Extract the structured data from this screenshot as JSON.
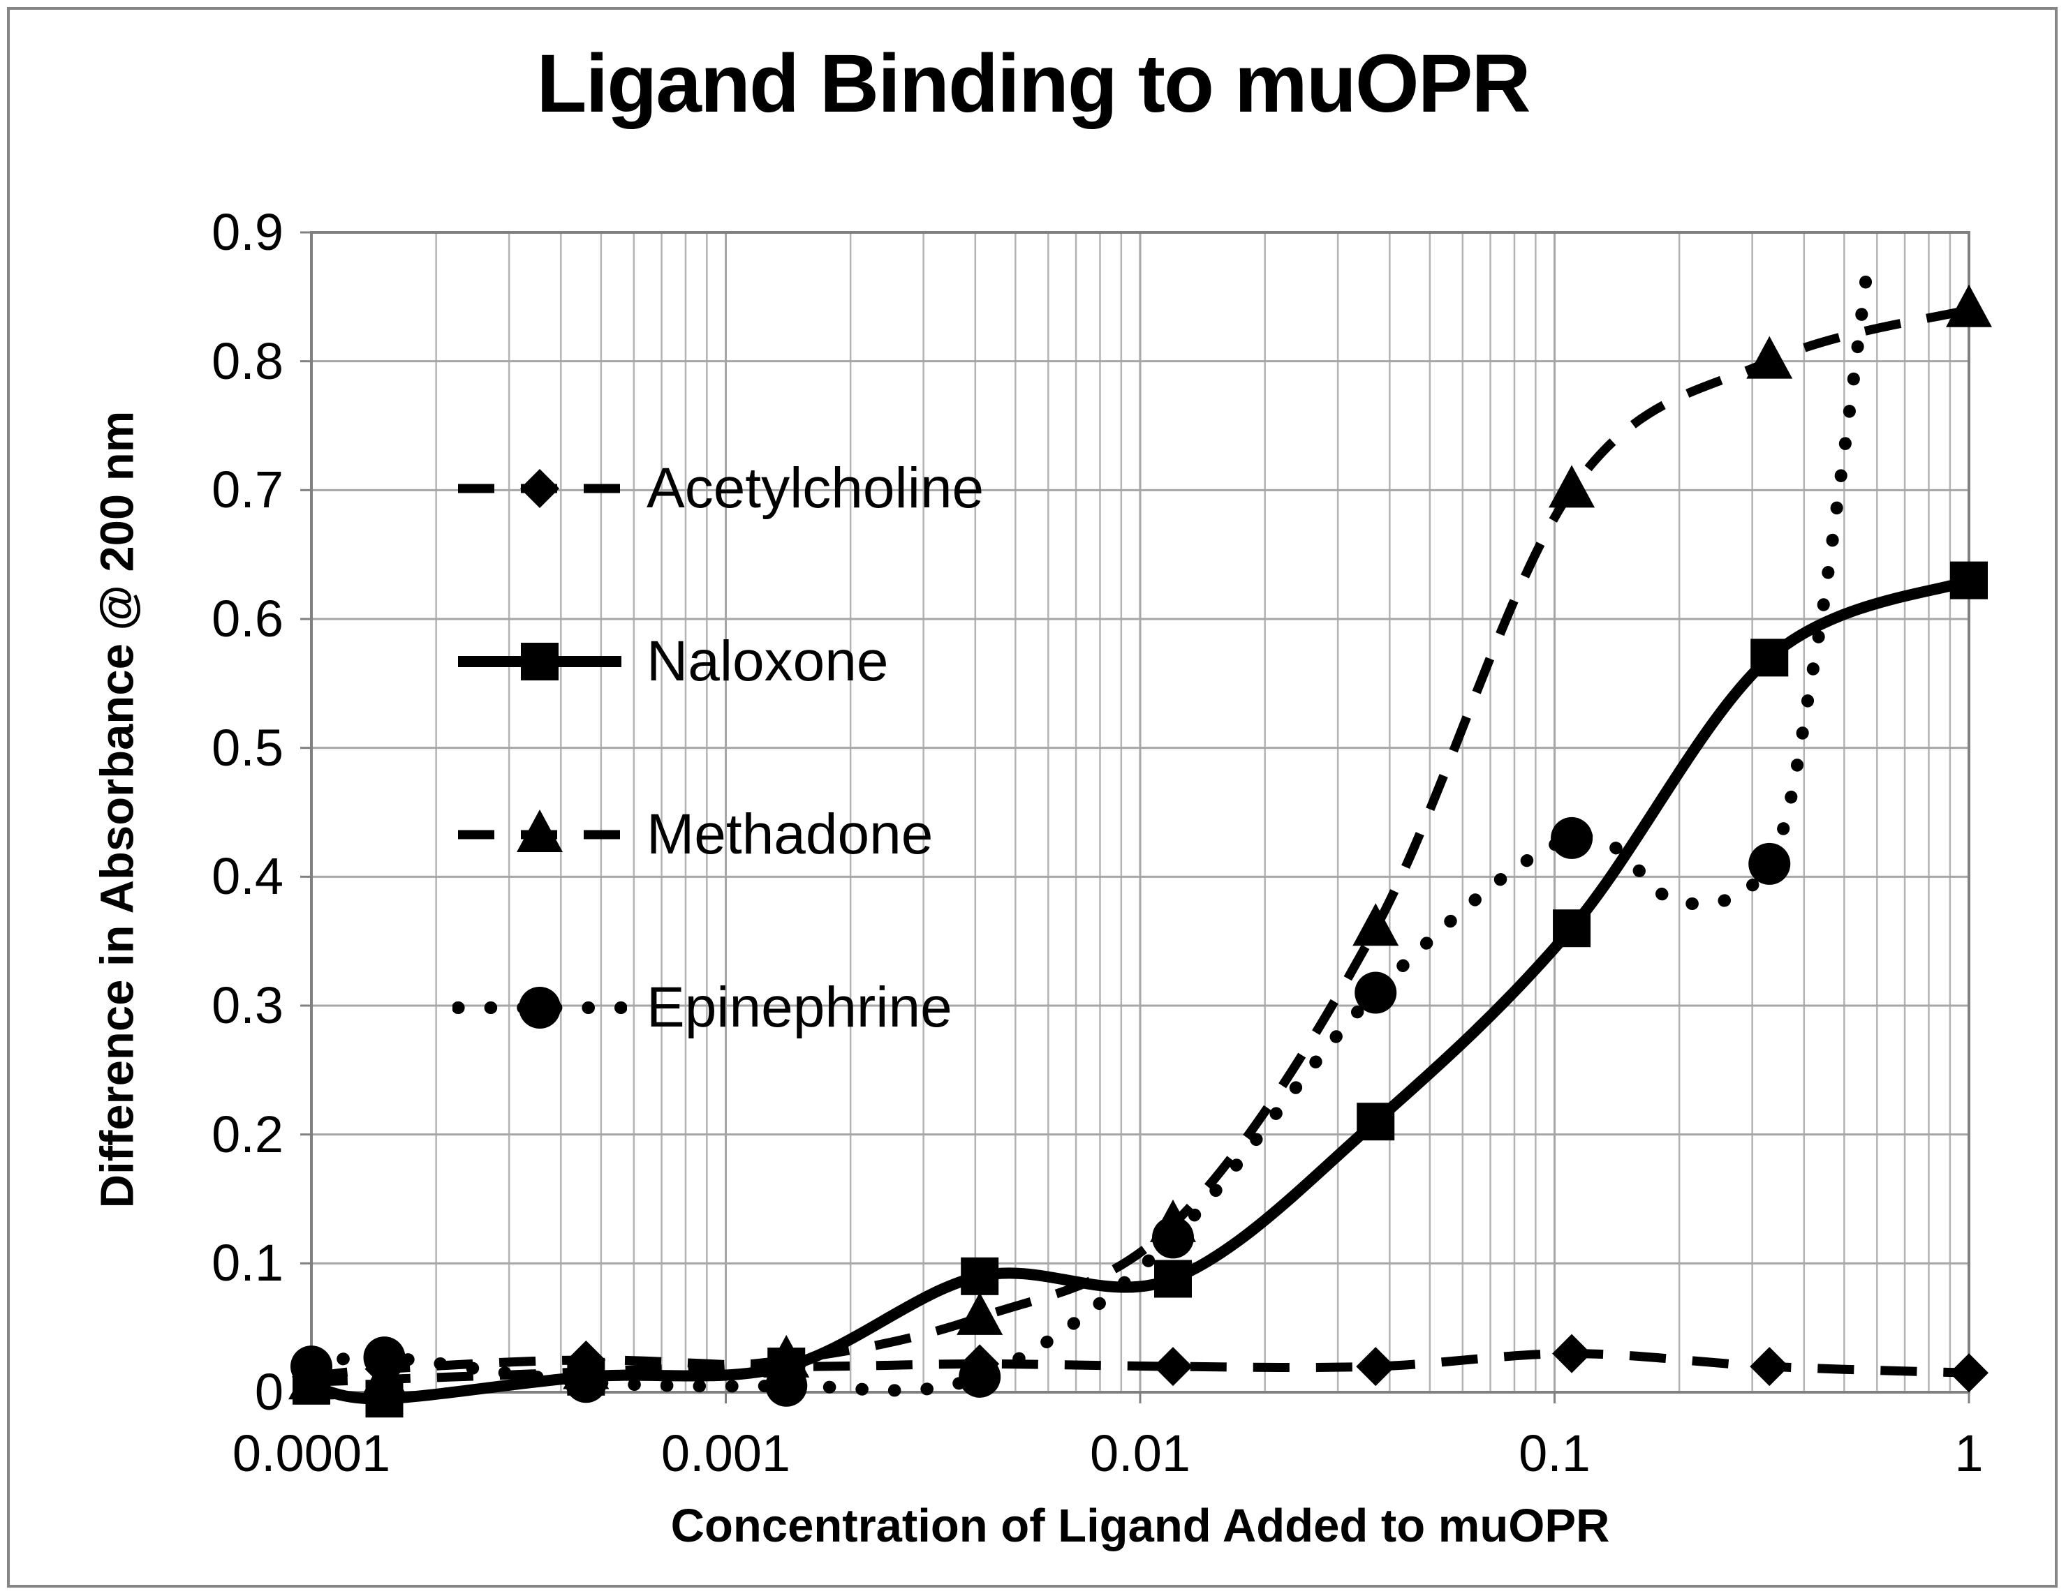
{
  "chart_data": {
    "type": "line",
    "title": "Ligand Binding to muOPR",
    "xlabel": "Concentration of Ligand Added to muOPR",
    "ylabel": "Difference in Absorbance @ 200 nm",
    "x_scale": "log",
    "xlim": [
      0.0001,
      1
    ],
    "ylim": [
      0,
      0.9
    ],
    "grid": true,
    "legend_position": "upper-left-inside",
    "x_ticks": [
      {
        "value": 0.0001,
        "label": "0.0001"
      },
      {
        "value": 0.001,
        "label": "0.001"
      },
      {
        "value": 0.01,
        "label": "0.01"
      },
      {
        "value": 0.1,
        "label": "0.1"
      },
      {
        "value": 1,
        "label": "1"
      }
    ],
    "y_ticks": [
      {
        "value": 0,
        "label": "0"
      },
      {
        "value": 0.1,
        "label": "0.1"
      },
      {
        "value": 0.2,
        "label": "0.2"
      },
      {
        "value": 0.3,
        "label": "0.3"
      },
      {
        "value": 0.4,
        "label": "0.4"
      },
      {
        "value": 0.5,
        "label": "0.5"
      },
      {
        "value": 0.6,
        "label": "0.6"
      },
      {
        "value": 0.7,
        "label": "0.7"
      },
      {
        "value": 0.8,
        "label": "0.8"
      },
      {
        "value": 0.9,
        "label": "0.9"
      }
    ],
    "series": [
      {
        "name": "Acetylcholine",
        "marker": "diamond",
        "line_style": "dashed",
        "points": [
          {
            "x": 0.0001,
            "y": 0.012
          },
          {
            "x": 0.00015,
            "y": 0.018
          },
          {
            "x": 0.00046,
            "y": 0.025
          },
          {
            "x": 0.0014,
            "y": 0.02
          },
          {
            "x": 0.0041,
            "y": 0.022
          },
          {
            "x": 0.012,
            "y": 0.02
          },
          {
            "x": 0.037,
            "y": 0.02
          },
          {
            "x": 0.11,
            "y": 0.03
          },
          {
            "x": 0.33,
            "y": 0.02
          },
          {
            "x": 1,
            "y": 0.015
          }
        ]
      },
      {
        "name": "Naloxone",
        "marker": "square",
        "line_style": "solid",
        "points": [
          {
            "x": 0.0001,
            "y": 0.005
          },
          {
            "x": 0.00015,
            "y": -0.005
          },
          {
            "x": 0.00046,
            "y": 0.012
          },
          {
            "x": 0.0014,
            "y": 0.02
          },
          {
            "x": 0.0041,
            "y": 0.09
          },
          {
            "x": 0.012,
            "y": 0.088
          },
          {
            "x": 0.037,
            "y": 0.21
          },
          {
            "x": 0.11,
            "y": 0.36
          },
          {
            "x": 0.33,
            "y": 0.57
          },
          {
            "x": 1,
            "y": 0.63
          }
        ]
      },
      {
        "name": "Methadone",
        "marker": "triangle",
        "line_style": "dashed",
        "points": [
          {
            "x": 0.0001,
            "y": 0.008
          },
          {
            "x": 0.00015,
            "y": 0.01
          },
          {
            "x": 0.00046,
            "y": 0.016
          },
          {
            "x": 0.0014,
            "y": 0.025
          },
          {
            "x": 0.0041,
            "y": 0.058
          },
          {
            "x": 0.012,
            "y": 0.13
          },
          {
            "x": 0.037,
            "y": 0.36
          },
          {
            "x": 0.11,
            "y": 0.7
          },
          {
            "x": 0.33,
            "y": 0.8
          },
          {
            "x": 1,
            "y": 0.84
          }
        ]
      },
      {
        "name": "Epinephrine",
        "marker": "circle",
        "line_style": "dotted",
        "points": [
          {
            "x": 0.0001,
            "y": 0.02
          },
          {
            "x": 0.00015,
            "y": 0.027
          },
          {
            "x": 0.00046,
            "y": 0.008
          },
          {
            "x": 0.0014,
            "y": 0.005
          },
          {
            "x": 0.0041,
            "y": 0.012
          },
          {
            "x": 0.012,
            "y": 0.12
          },
          {
            "x": 0.037,
            "y": 0.31
          },
          {
            "x": 0.11,
            "y": 0.43
          },
          {
            "x": 0.33,
            "y": 0.41
          }
        ],
        "path_extra_points": [
          {
            "x": 0.2,
            "y": 0.38
          }
        ],
        "offscale_tail": [
          {
            "x": 0.42,
            "y": 0.56
          },
          {
            "x": 0.5,
            "y": 0.73
          },
          {
            "x": 0.575,
            "y": 0.885
          }
        ],
        "note": "dotted curve rises off the top of the plot after the 0.33 point; no marker at x=1"
      }
    ],
    "colors": {
      "series": "#000000",
      "gridline_major": "#a6a6a6",
      "gridline_minor": "#b3b3b3",
      "plot_border": "#808080",
      "background": "#ffffff"
    }
  }
}
